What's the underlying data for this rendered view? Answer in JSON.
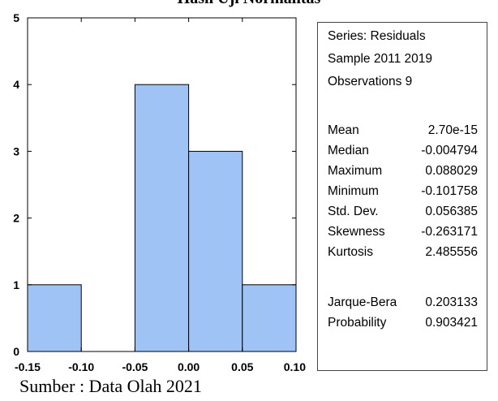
{
  "title": "Hasil Uji Normalitas",
  "chart_data": {
    "type": "bar",
    "bins": [
      {
        "from": -0.15,
        "to": -0.1,
        "count": 1
      },
      {
        "from": -0.1,
        "to": -0.05,
        "count": 0
      },
      {
        "from": -0.05,
        "to": 0.0,
        "count": 4
      },
      {
        "from": 0.0,
        "to": 0.05,
        "count": 3
      },
      {
        "from": 0.05,
        "to": 0.1,
        "count": 1
      }
    ],
    "xticks": [
      "-0.15",
      "-0.10",
      "-0.05",
      "0.00",
      "0.05",
      "0.10"
    ],
    "yticks": [
      "0",
      "1",
      "2",
      "3",
      "4",
      "5"
    ],
    "xlim": [
      -0.15,
      0.1
    ],
    "ylim": [
      0,
      5
    ],
    "bar_color": "#9FC3F5",
    "grid": false
  },
  "stats": {
    "series": "Series: Residuals",
    "sample": "Sample 2011 2019",
    "observations": "Observations 9",
    "rows": [
      {
        "label": "Mean",
        "value": "2.70e-15"
      },
      {
        "label": "Median",
        "value": "-0.004794"
      },
      {
        "label": "Maximum",
        "value": "0.088029"
      },
      {
        "label": "Minimum",
        "value": "-0.101758"
      },
      {
        "label": "Std. Dev.",
        "value": "0.056385"
      },
      {
        "label": "Skewness",
        "value": "-0.263171"
      },
      {
        "label": "Kurtosis",
        "value": "2.485556"
      }
    ],
    "tests": [
      {
        "label": "Jarque-Bera",
        "value": "0.203133"
      },
      {
        "label": "Probability",
        "value": "0.903421"
      }
    ]
  },
  "source": "Sumber : Data Olah 2021"
}
